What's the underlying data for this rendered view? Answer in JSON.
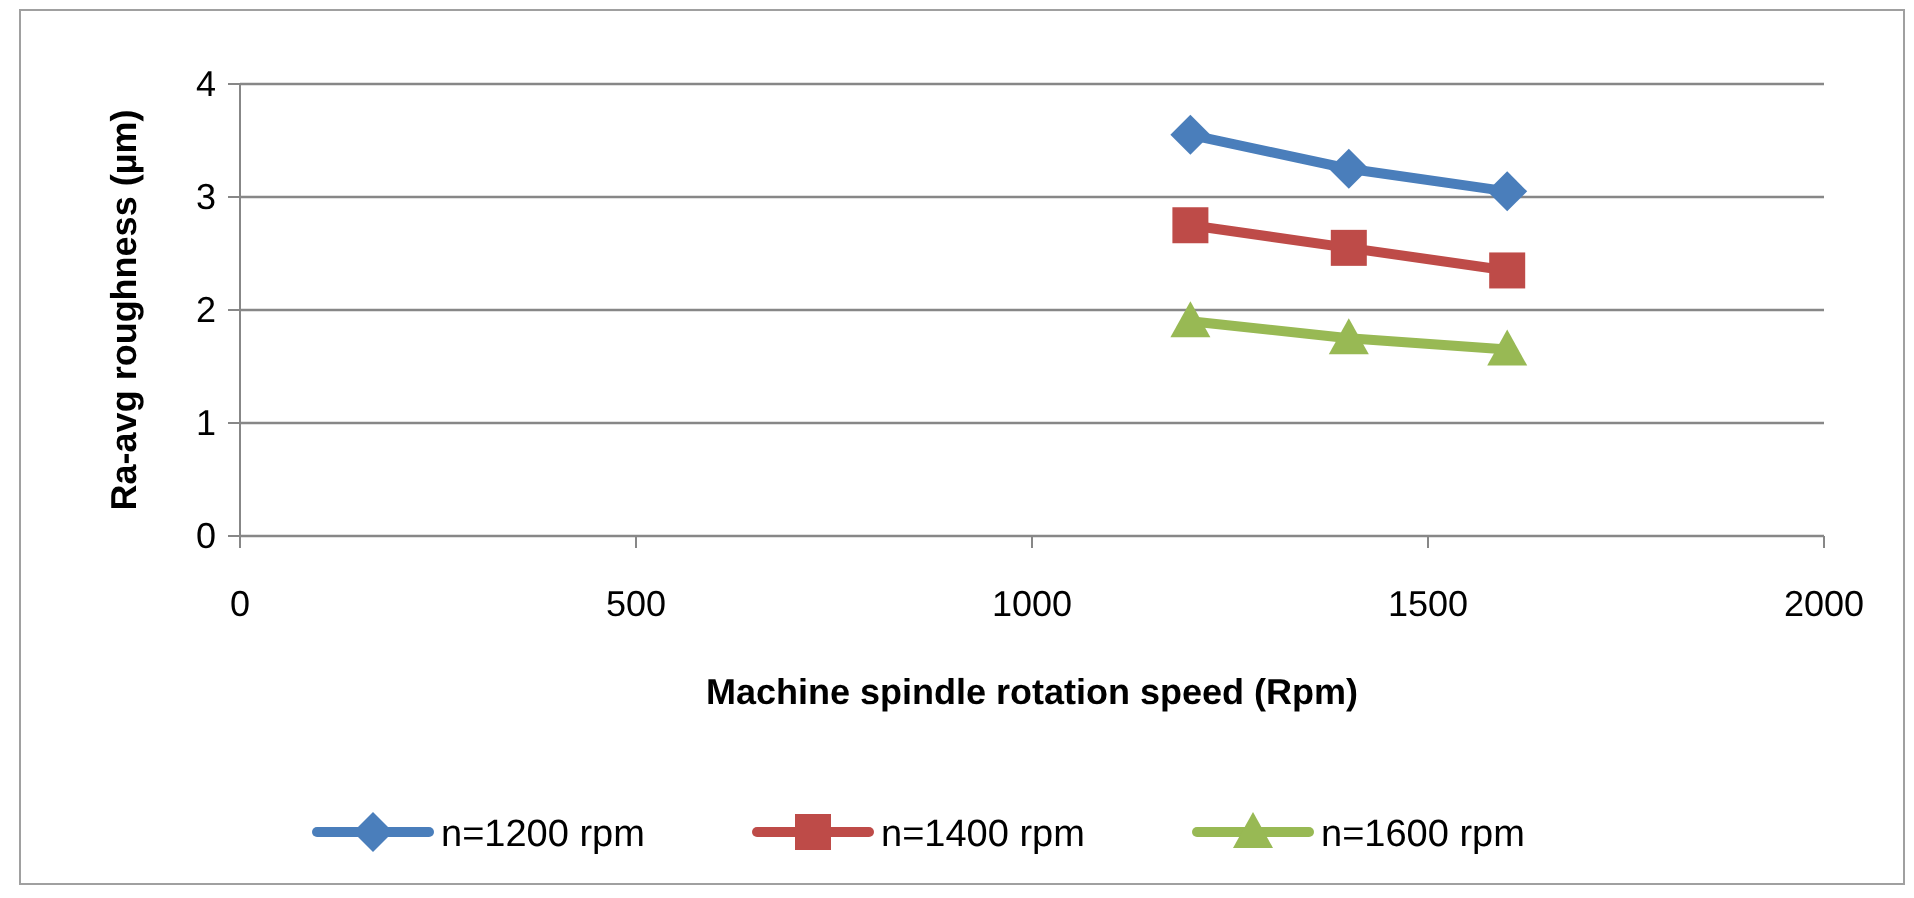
{
  "chart_data": {
    "type": "line",
    "xlabel": "Machine spindle rotation speed (Rpm)",
    "ylabel": "Ra-avg roughness (µm)",
    "x": [
      1200,
      1400,
      1600
    ],
    "series": [
      {
        "name": "n=1200 rpm",
        "color": "#4a7ebb",
        "marker": "diamond",
        "values": [
          3.55,
          3.25,
          3.05
        ]
      },
      {
        "name": "n=1400 rpm",
        "color": "#be4b48",
        "marker": "square",
        "values": [
          2.75,
          2.55,
          2.35
        ]
      },
      {
        "name": "n=1600 rpm",
        "color": "#98b954",
        "marker": "triangle",
        "values": [
          1.9,
          1.75,
          1.65
        ]
      }
    ],
    "xlim": [
      0,
      2000
    ],
    "xticks": [
      0,
      500,
      1000,
      1500,
      2000
    ],
    "ylim": [
      0,
      4
    ],
    "yticks": [
      0,
      1,
      2,
      3,
      4
    ],
    "grid": "y",
    "legend": "bottom",
    "line_style": "solid"
  }
}
